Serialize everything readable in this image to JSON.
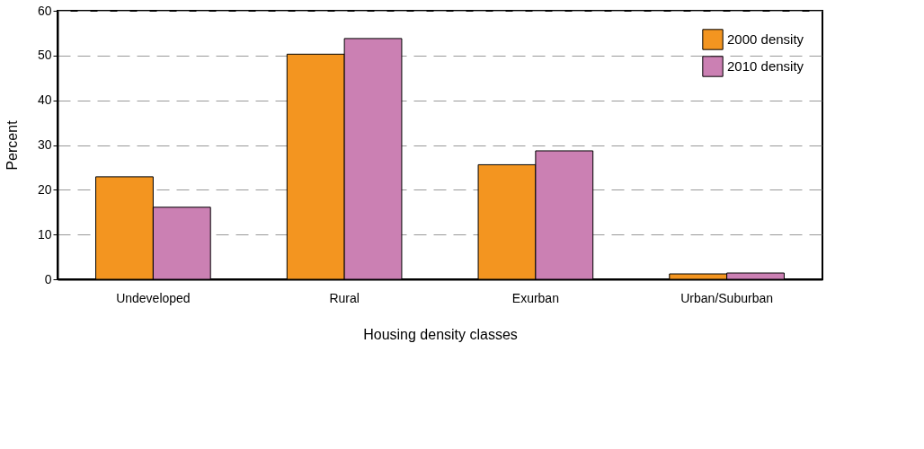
{
  "chart_data": {
    "type": "bar",
    "xlabel": "Housing density classes",
    "ylabel": "Percent",
    "categories": [
      "Undeveloped",
      "Rural",
      "Exurban",
      "Urban/Suburban"
    ],
    "series": [
      {
        "name": "2000 density",
        "color": "#f39520",
        "values": [
          22.9,
          50.3,
          25.6,
          1.2
        ]
      },
      {
        "name": "2010 density",
        "color": "#cb80b3",
        "values": [
          16.1,
          53.8,
          28.7,
          1.4
        ]
      }
    ],
    "ylim": [
      0,
      60
    ],
    "yticks": [
      0,
      10,
      20,
      30,
      40,
      50,
      60
    ],
    "grid": "y",
    "legend": "top right"
  }
}
